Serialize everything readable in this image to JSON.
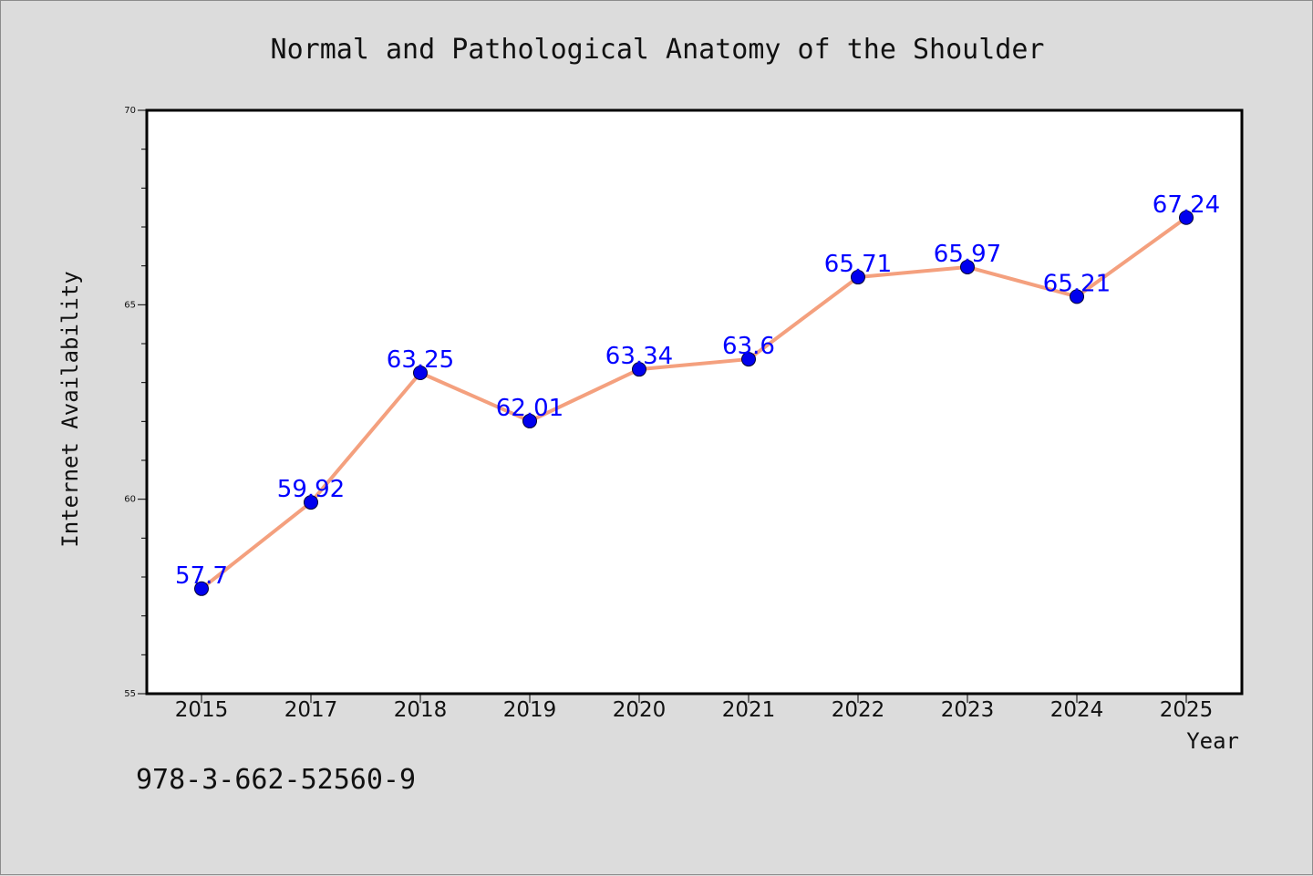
{
  "chart_data": {
    "type": "line",
    "title": "Normal and Pathological Anatomy of the Shoulder",
    "xlabel": "Year",
    "ylabel": "Internet Availability",
    "categories": [
      "2015",
      "2017",
      "2018",
      "2019",
      "2020",
      "2021",
      "2022",
      "2023",
      "2024",
      "2025"
    ],
    "values": [
      57.7,
      59.92,
      63.25,
      62.01,
      63.34,
      63.6,
      65.71,
      65.97,
      65.21,
      67.24
    ],
    "data_labels": [
      "57.7",
      "59.92",
      "63.25",
      "62.01",
      "63.34",
      "63.6",
      "65.71",
      "65.97",
      "65.21",
      "67.24"
    ],
    "ylim": [
      55,
      70
    ],
    "yticks": [
      "55",
      "60",
      "65",
      "70"
    ],
    "grid": false,
    "legend": "none",
    "line_color": "#f4a07e",
    "marker_color": "#0000ee",
    "label_color": "#0000ff"
  },
  "footer": {
    "isbn": "978-3-662-52560-9"
  }
}
